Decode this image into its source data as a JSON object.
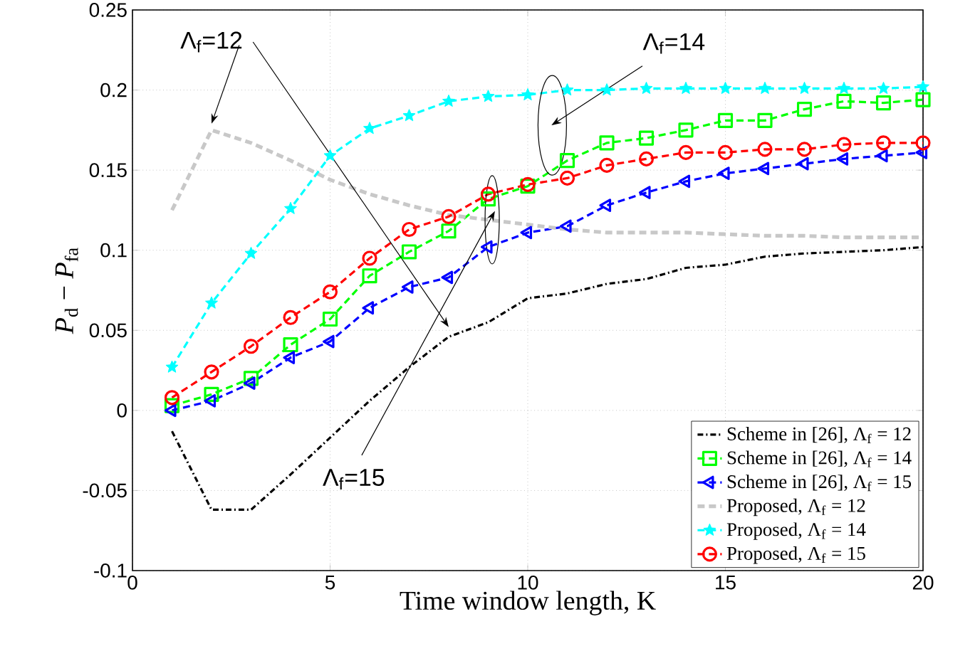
{
  "chart_data": {
    "type": "line",
    "xlabel": "Time window length, K",
    "ylabel": "*P*$_{d}$ − *P*$_{fa}$",
    "x": [
      1,
      2,
      3,
      4,
      5,
      6,
      7,
      8,
      9,
      10,
      11,
      12,
      13,
      14,
      15,
      16,
      17,
      18,
      19,
      20
    ],
    "xlim": [
      0,
      20
    ],
    "xticks": [
      0,
      5,
      10,
      15,
      20
    ],
    "ylim": [
      -0.1,
      0.25
    ],
    "yticks": [
      -0.1,
      -0.05,
      0,
      0.05,
      0.1,
      0.15,
      0.2,
      0.25
    ],
    "grid": true,
    "legend": "bottom right",
    "series": [
      {
        "name": "Scheme in [26], Λ$_{f}$ = 12",
        "color": "#000000",
        "marker": "none",
        "line_style": "dashdot",
        "values": [
          -0.013,
          -0.062,
          -0.062,
          -0.04,
          -0.017,
          0.006,
          0.027,
          0.046,
          0.055,
          0.07,
          0.073,
          0.079,
          0.082,
          0.089,
          0.091,
          0.096,
          0.098,
          0.099,
          0.1,
          0.102
        ]
      },
      {
        "name": "Scheme in [26], Λ$_{f}$ = 14",
        "color": "#00ff00",
        "marker": "square",
        "line_style": "dashed",
        "values": [
          0.003,
          0.01,
          0.02,
          0.041,
          0.057,
          0.084,
          0.099,
          0.112,
          0.132,
          0.14,
          0.156,
          0.167,
          0.17,
          0.175,
          0.181,
          0.181,
          0.188,
          0.193,
          0.192,
          0.194
        ]
      },
      {
        "name": "Scheme in [26], Λ$_{f}$ = 15",
        "color": "#0000ff",
        "marker": "triangle",
        "line_style": "dashed",
        "values": [
          0.0,
          0.006,
          0.017,
          0.033,
          0.043,
          0.064,
          0.077,
          0.083,
          0.102,
          0.111,
          0.115,
          0.128,
          0.136,
          0.143,
          0.148,
          0.151,
          0.154,
          0.157,
          0.159,
          0.161
        ]
      },
      {
        "name": "Proposed, Λ$_{f}$ = 12",
        "color": "#c8c8c8",
        "marker": "none",
        "line_style": "dashed",
        "values": [
          0.125,
          0.175,
          0.167,
          0.156,
          0.144,
          0.135,
          0.128,
          0.122,
          0.119,
          0.116,
          0.113,
          0.111,
          0.111,
          0.111,
          0.11,
          0.109,
          0.109,
          0.108,
          0.108,
          0.108
        ]
      },
      {
        "name": "Proposed, Λ$_{f}$ = 14",
        "color": "#00ffff",
        "marker": "star",
        "line_style": "dashed",
        "values": [
          0.027,
          0.067,
          0.098,
          0.126,
          0.159,
          0.176,
          0.184,
          0.193,
          0.196,
          0.197,
          0.2,
          0.2,
          0.201,
          0.201,
          0.201,
          0.201,
          0.201,
          0.201,
          0.201,
          0.202
        ]
      },
      {
        "name": "Proposed, Λ$_{f}$ = 15",
        "color": "#ff0000",
        "marker": "circle",
        "line_style": "dashed",
        "values": [
          0.008,
          0.024,
          0.04,
          0.058,
          0.074,
          0.095,
          0.113,
          0.121,
          0.135,
          0.141,
          0.145,
          0.153,
          0.157,
          0.161,
          0.161,
          0.163,
          0.163,
          0.166,
          0.167,
          0.167
        ]
      }
    ],
    "annotations": [
      "Λ$_{f}$=12",
      "Λ$_{f}$=14",
      "Λ$_{f}$=15"
    ]
  }
}
